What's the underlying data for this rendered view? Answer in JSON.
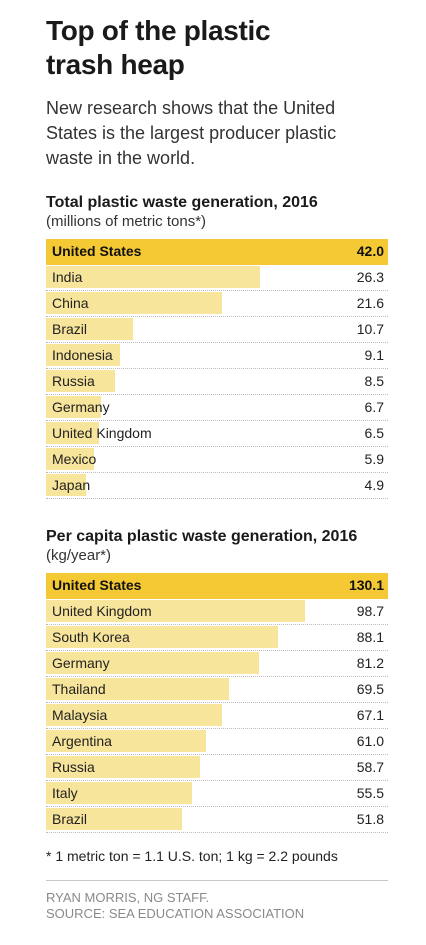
{
  "header": {
    "title": "Top of the plastic trash heap",
    "subtitle": "New research shows that the United States is the largest producer plastic waste in the world."
  },
  "colors": {
    "highlight": "#f5c934",
    "bar": "#f7e59b",
    "text": "#1a1a1a",
    "credit": "#8a8a8a"
  },
  "chart_data": [
    {
      "type": "bar",
      "title": "Total plastic waste generation, 2016",
      "subtitle": "(millions of metric tons*)",
      "categories": [
        "United States",
        "India",
        "China",
        "Brazil",
        "Indonesia",
        "Russia",
        "Germany",
        "United Kingdom",
        "Mexico",
        "Japan"
      ],
      "values": [
        42.0,
        26.3,
        21.6,
        10.7,
        9.1,
        8.5,
        6.7,
        6.5,
        5.9,
        4.9
      ],
      "value_labels": [
        "42.0",
        "26.3",
        "21.6",
        "10.7",
        "9.1",
        "8.5",
        "6.7",
        "6.5",
        "5.9",
        "4.9"
      ],
      "max": 42.0
    },
    {
      "type": "bar",
      "title": "Per capita plastic waste generation, 2016",
      "subtitle": "(kg/year*)",
      "categories": [
        "United States",
        "United Kingdom",
        "South Korea",
        "Germany",
        "Thailand",
        "Malaysia",
        "Argentina",
        "Russia",
        "Italy",
        "Brazil"
      ],
      "values": [
        130.1,
        98.7,
        88.1,
        81.2,
        69.5,
        67.1,
        61.0,
        58.7,
        55.5,
        51.8
      ],
      "value_labels": [
        "130.1",
        "98.7",
        "88.1",
        "81.2",
        "69.5",
        "67.1",
        "61.0",
        "58.7",
        "55.5",
        "51.8"
      ],
      "max": 130.1
    }
  ],
  "footnote": "* 1 metric ton = 1.1 U.S. ton; 1 kg = 2.2 pounds",
  "credits": {
    "byline": "RYAN MORRIS, NG STAFF.",
    "source": "SOURCE: SEA EDUCATION ASSOCIATION"
  }
}
